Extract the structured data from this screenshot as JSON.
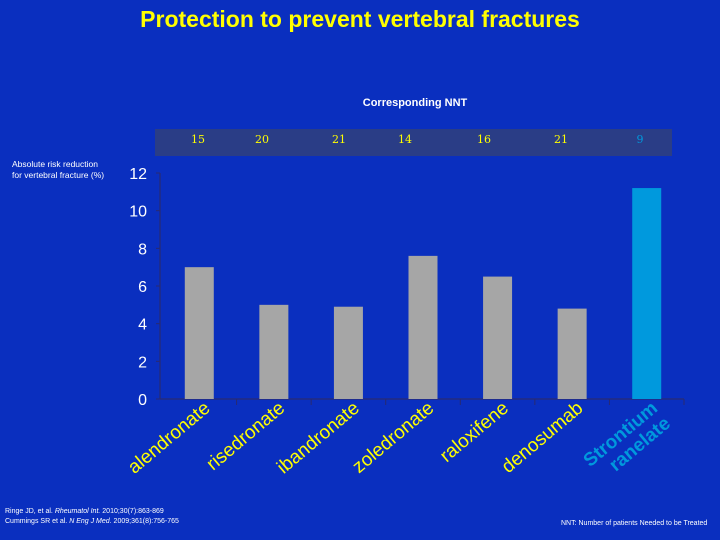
{
  "title": "Protection to prevent vertebral fractures",
  "nnt_header": "Corresponding NNT",
  "nnt_values": [
    "15",
    "20",
    "21",
    "14",
    "16",
    "21",
    "9"
  ],
  "ylabel_line1": "Absolute risk reduction",
  "ylabel_line2": "for vertebral fracture (%)",
  "references": [
    {
      "author": "Ringe JD, et al. ",
      "journal": "Rheumatol Int.",
      "rest": " 2010;30(7):863-869"
    },
    {
      "author": "Cummings SR et al. ",
      "journal": "N Eng J Med.",
      "rest": " 2009;361(8):756-765"
    }
  ],
  "footnote": "NNT: Number of patients Needed to be Treated",
  "colors": {
    "background": "#0a2fbf",
    "title": "#ffff00",
    "bar": "#a6a6a6",
    "bar_highlight": "#0099dd",
    "nnt_value": "#ffff00",
    "nnt_last": "#0099dd"
  },
  "chart_data": {
    "type": "bar",
    "title": "Protection to prevent vertebral fractures",
    "xlabel": "",
    "ylabel": "Absolute risk reduction for vertebral fracture (%)",
    "ylim": [
      0,
      12
    ],
    "yticks": [
      0,
      2,
      4,
      6,
      8,
      10,
      12
    ],
    "grid": false,
    "categories": [
      {
        "lines": [
          "alendronate"
        ],
        "highlight": false
      },
      {
        "lines": [
          "risedronate"
        ],
        "highlight": false
      },
      {
        "lines": [
          "ibandronate"
        ],
        "highlight": false
      },
      {
        "lines": [
          "zoledronate"
        ],
        "highlight": false
      },
      {
        "lines": [
          "raloxifene"
        ],
        "highlight": false
      },
      {
        "lines": [
          "denosumab"
        ],
        "highlight": false
      },
      {
        "lines": [
          "Strontium",
          "ranelate"
        ],
        "highlight": true
      }
    ],
    "values": [
      7.0,
      5.0,
      4.9,
      7.6,
      6.5,
      4.8,
      11.2
    ]
  }
}
